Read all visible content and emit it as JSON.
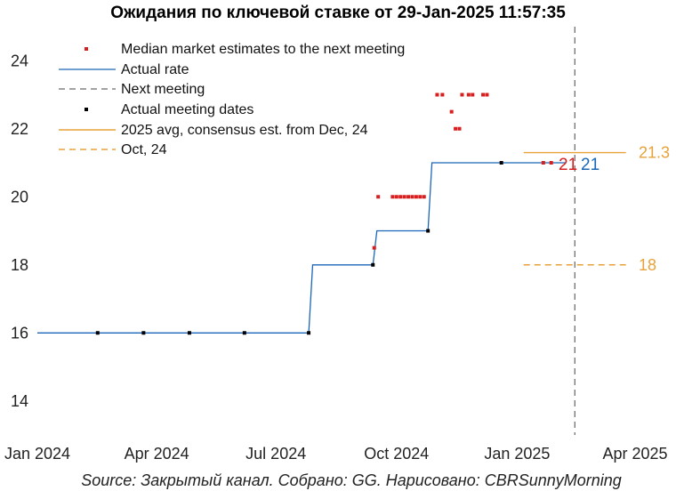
{
  "chart_data": {
    "type": "line",
    "title": "Ожидания по ключевой ставке от 29-Jan-2025 11:57:35",
    "source": "Source: Закрытый канал. Собрано: GG. Нарисовано: CBRSunnyMorning",
    "ylim": [
      13,
      25
    ],
    "y_ticks": [
      14,
      16,
      18,
      20,
      22,
      24
    ],
    "y_tick_labels": [
      "14",
      "16",
      "18",
      "20",
      "22",
      "24"
    ],
    "xlim": [
      "2024-01-01",
      "2025-04-01"
    ],
    "x_ticks": [
      "2024-01-01",
      "2024-04-01",
      "2024-07-01",
      "2024-10-01",
      "2025-01-01",
      "2025-04-01"
    ],
    "x_tick_labels": [
      "Jan 2024",
      "Apr 2024",
      "Jul 2024",
      "Oct 2024",
      "Jan 2025",
      "Apr 2025"
    ],
    "grid": false,
    "legend_position": "top-left",
    "legend": [
      {
        "label": "Median market estimates to the next meeting",
        "marker": "red-square"
      },
      {
        "label": "Actual rate",
        "marker": "blue-line"
      },
      {
        "label": "Next meeting",
        "marker": "black-dashed-line"
      },
      {
        "label": "Actual meeting dates",
        "marker": "black-square"
      },
      {
        "label": "2025 avg, consensus est. from Dec, 24",
        "marker": "orange-line"
      },
      {
        "label": "Oct, 24",
        "marker": "orange-dashed-line"
      }
    ],
    "actual_rate": {
      "name": "Actual rate",
      "color": "#1b66b8",
      "steps": [
        {
          "from": "2024-01-01",
          "to": "2024-07-26",
          "value": 16
        },
        {
          "from": "2024-07-29",
          "to": "2024-09-13",
          "value": 18
        },
        {
          "from": "2024-09-16",
          "to": "2024-10-25",
          "value": 19
        },
        {
          "from": "2024-10-28",
          "to": "2025-02-07",
          "value": 21
        }
      ]
    },
    "meeting_dates": [
      {
        "x": "2024-02-16",
        "y": 16
      },
      {
        "x": "2024-03-22",
        "y": 16
      },
      {
        "x": "2024-04-26",
        "y": 16
      },
      {
        "x": "2024-06-07",
        "y": 16
      },
      {
        "x": "2024-07-26",
        "y": 16
      },
      {
        "x": "2024-09-13",
        "y": 18
      },
      {
        "x": "2024-10-25",
        "y": 19
      },
      {
        "x": "2024-12-20",
        "y": 21
      }
    ],
    "median_estimates": [
      {
        "x": "2024-09-14",
        "y": 18.5
      },
      {
        "x": "2024-09-17",
        "y": 20
      },
      {
        "x": "2024-09-28",
        "y": 20
      },
      {
        "x": "2024-10-01",
        "y": 20
      },
      {
        "x": "2024-10-04",
        "y": 20
      },
      {
        "x": "2024-10-07",
        "y": 20
      },
      {
        "x": "2024-10-10",
        "y": 20
      },
      {
        "x": "2024-10-13",
        "y": 20
      },
      {
        "x": "2024-10-16",
        "y": 20
      },
      {
        "x": "2024-10-19",
        "y": 20
      },
      {
        "x": "2024-10-22",
        "y": 20
      },
      {
        "x": "2024-11-01",
        "y": 23
      },
      {
        "x": "2024-11-05",
        "y": 23
      },
      {
        "x": "2024-11-12",
        "y": 22.5
      },
      {
        "x": "2024-11-15",
        "y": 22
      },
      {
        "x": "2024-11-18",
        "y": 22
      },
      {
        "x": "2024-11-20",
        "y": 23
      },
      {
        "x": "2024-11-25",
        "y": 23
      },
      {
        "x": "2024-11-28",
        "y": 23
      },
      {
        "x": "2024-12-06",
        "y": 23
      },
      {
        "x": "2024-12-09",
        "y": 23
      },
      {
        "x": "2025-01-21",
        "y": 21
      },
      {
        "x": "2025-01-27",
        "y": 21
      }
    ],
    "next_meeting": "2025-02-14",
    "reference_lines": [
      {
        "name": "2025 avg, consensus est. from Dec, 24",
        "y": 21.3,
        "from": "2025-01-06",
        "to": "2025-03-25",
        "style": "solid",
        "color": "#E8A23A",
        "label": "21.3"
      },
      {
        "name": "Oct, 24",
        "y": 18,
        "from": "2025-01-06",
        "to": "2025-03-25",
        "style": "dashed",
        "color": "#E8A23A",
        "label": "18"
      }
    ],
    "end_labels": {
      "estimate": "21",
      "actual": "21"
    },
    "colors": {
      "estimate": "#d81e1e",
      "actual": "#1b66b8",
      "meeting": "#000000",
      "reference": "#E8A23A",
      "next_meeting": "#444444"
    }
  }
}
